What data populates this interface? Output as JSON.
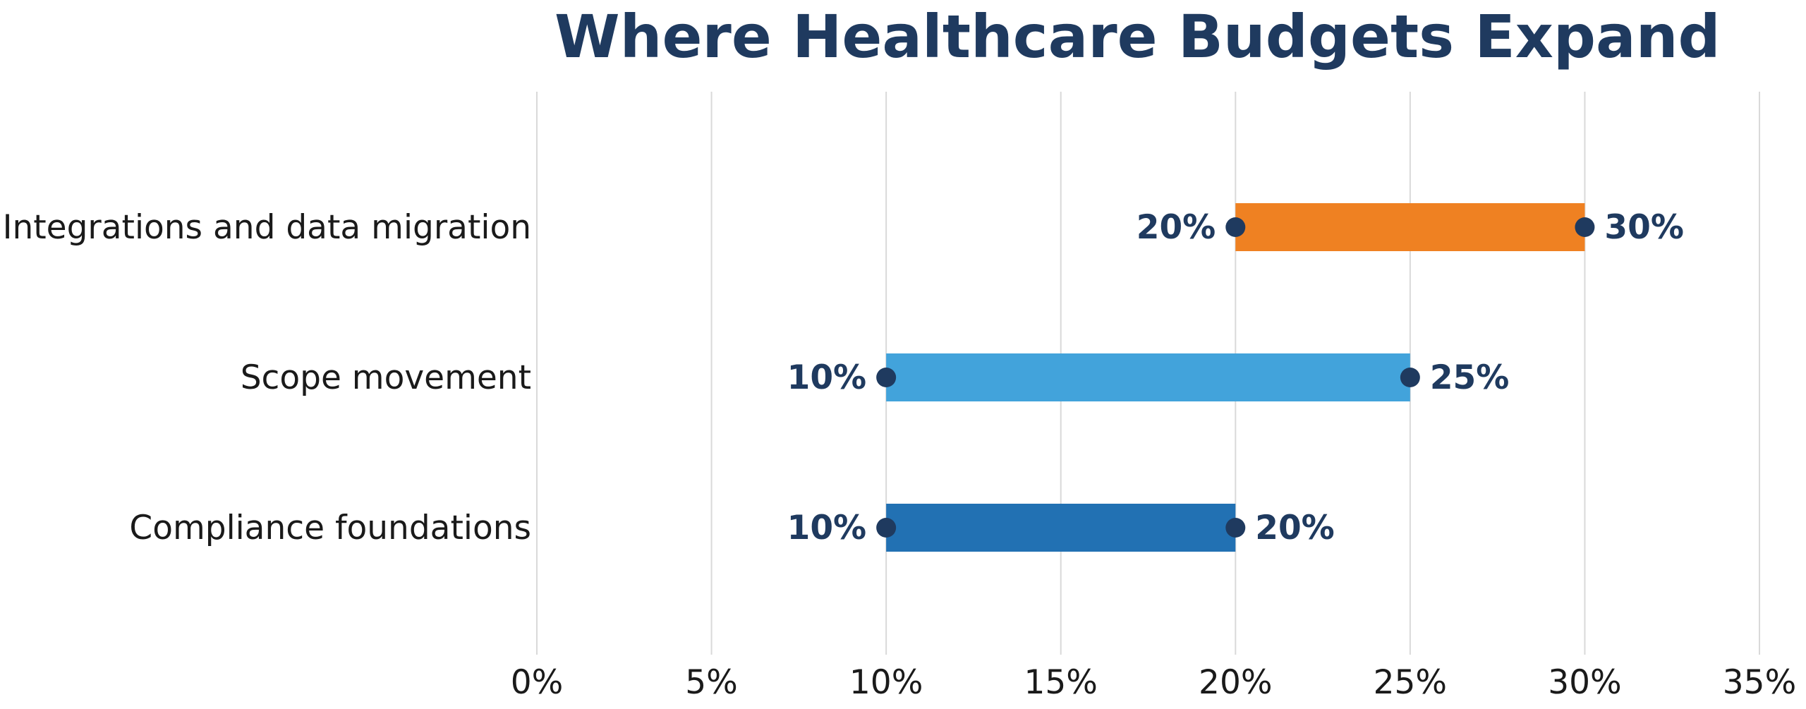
{
  "chart_data": {
    "type": "bar",
    "subtype": "floating-range",
    "title": "Where Healthcare Budgets Expand",
    "xlabel": "",
    "ylabel": "",
    "xlim": [
      0,
      35
    ],
    "x_ticks": [
      0,
      5,
      10,
      15,
      20,
      25,
      30,
      35
    ],
    "x_tick_labels": [
      "0%",
      "5%",
      "10%",
      "15%",
      "20%",
      "25%",
      "30%",
      "35%"
    ],
    "grid": "vertical",
    "categories": [
      "Integrations and data migration",
      "Scope movement",
      "Compliance foundations"
    ],
    "ranges": [
      {
        "category": "Integrations and data migration",
        "low": 20,
        "high": 30,
        "low_label": "20%",
        "high_label": "30%",
        "color": "#ef8122"
      },
      {
        "category": "Scope movement",
        "low": 10,
        "high": 25,
        "low_label": "10%",
        "high_label": "25%",
        "color": "#42a3db"
      },
      {
        "category": "Compliance foundations",
        "low": 10,
        "high": 20,
        "low_label": "10%",
        "high_label": "20%",
        "color": "#2271b3"
      }
    ],
    "endpoint_color": "#1f3a5f",
    "label_color": "#1f3a5f",
    "title_color": "#1f3a5f"
  }
}
